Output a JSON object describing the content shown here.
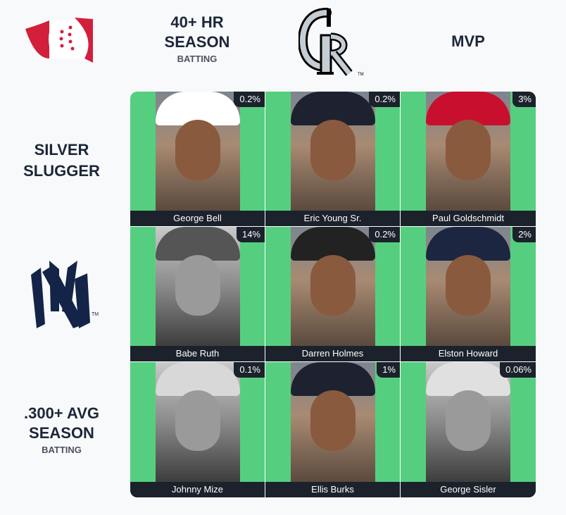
{
  "logos": {
    "top_left": "immaculate-grid-logo",
    "col2": "colorado-rockies-logo",
    "row2": "new-york-yankees-logo"
  },
  "columns": [
    {
      "title": "40+ HR SEASON",
      "subtitle": "BATTING"
    },
    {
      "logo": "Colorado Rockies"
    },
    {
      "title": "MVP"
    }
  ],
  "rows": [
    {
      "title": "SILVER SLUGGER"
    },
    {
      "logo": "New York Yankees"
    },
    {
      "title": ".300+ AVG SEASON",
      "subtitle": "BATTING"
    }
  ],
  "colors": {
    "correct": "#55cf7f",
    "label_bg": "#1b222c",
    "text": "#1c2638",
    "logo_red": "#d21f3c",
    "yankees_navy": "#132448"
  },
  "cells": [
    {
      "player": "George Bell",
      "percent": "0.2%",
      "cap": "#ffffff",
      "bw": false
    },
    {
      "player": "Eric Young Sr.",
      "percent": "0.2%",
      "cap": "#1e2230",
      "bw": false
    },
    {
      "player": "Paul Goldschmidt",
      "percent": "3%",
      "cap": "#c8102e",
      "bw": false
    },
    {
      "player": "Babe Ruth",
      "percent": "14%",
      "cap": "#555555",
      "bw": true
    },
    {
      "player": "Darren Holmes",
      "percent": "0.2%",
      "cap": "#222",
      "bw": false
    },
    {
      "player": "Elston Howard",
      "percent": "2%",
      "cap": "#1c2640",
      "bw": false
    },
    {
      "player": "Johnny Mize",
      "percent": "0.1%",
      "cap": "#d8d8d8",
      "bw": true
    },
    {
      "player": "Ellis Burks",
      "percent": "1%",
      "cap": "#1e2230",
      "bw": false
    },
    {
      "player": "George Sisler",
      "percent": "0.06%",
      "cap": "#e0e0e0",
      "bw": true
    }
  ]
}
